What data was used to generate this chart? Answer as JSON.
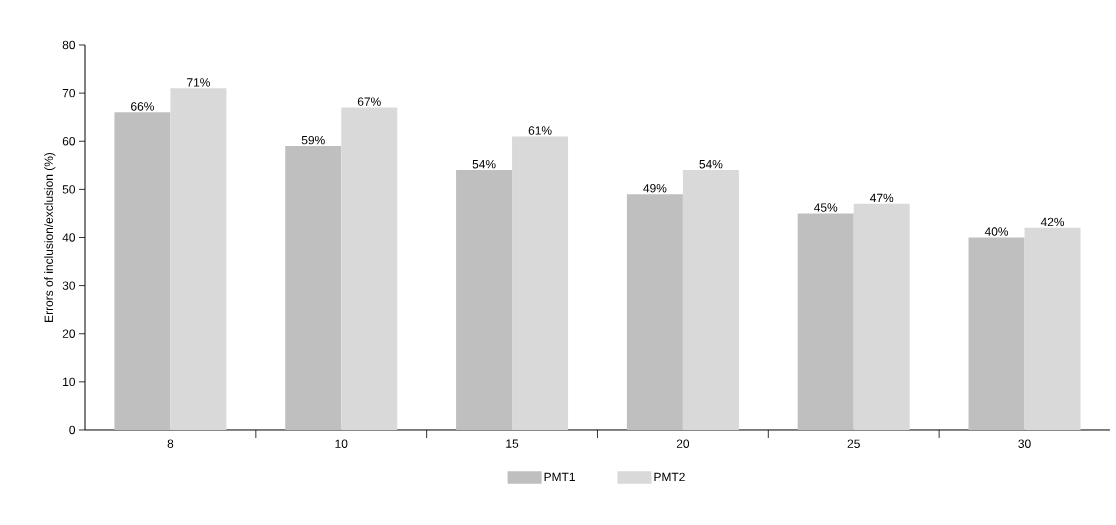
{
  "chart_data": {
    "type": "bar",
    "ylabel": "Errors of inclusion/exclusion (%)",
    "categories": [
      "8",
      "10",
      "15",
      "20",
      "25",
      "30"
    ],
    "series": [
      {
        "name": "PMT1",
        "color": "#bfbfbf",
        "values": [
          66,
          59,
          54,
          49,
          45,
          40
        ],
        "value_labels": [
          "66%",
          "59%",
          "54%",
          "49%",
          "45%",
          "40%"
        ]
      },
      {
        "name": "PMT2",
        "color": "#d9d9d9",
        "values": [
          71,
          67,
          61,
          54,
          47,
          42
        ],
        "value_labels": [
          "71%",
          "67%",
          "61%",
          "54%",
          "47%",
          "42%"
        ]
      }
    ],
    "ylim": [
      0,
      80
    ],
    "yticks": [
      0,
      10,
      20,
      30,
      40,
      50,
      60,
      70,
      80
    ],
    "grid": false,
    "legend": "bottom"
  }
}
